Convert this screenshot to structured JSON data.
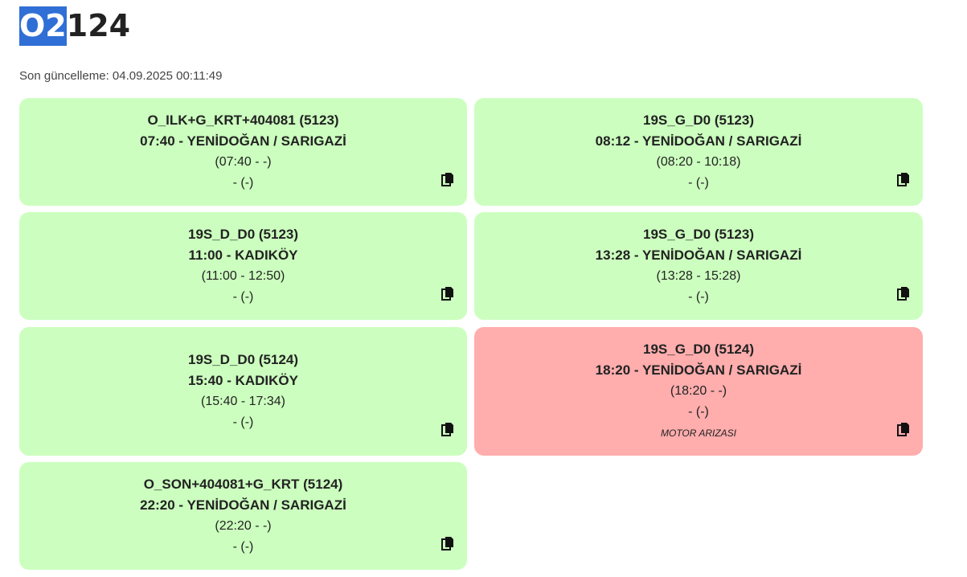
{
  "header": {
    "title_highlight": "O2",
    "title_rest": "124",
    "updated_label": "Son güncelleme: 04.09.2025 00:11:49"
  },
  "cards": [
    {
      "code": "O_ILK+G_KRT+404081 (5123)",
      "departure": "07:40 - YENİDOĞAN / SARIGAZİ",
      "time": "(07:40 - -)",
      "extra": "- (-)",
      "note": "",
      "status": "ok"
    },
    {
      "code": "19S_G_D0 (5123)",
      "departure": "08:12 - YENİDOĞAN / SARIGAZİ",
      "time": "(08:20 - 10:18)",
      "extra": "- (-)",
      "note": "",
      "status": "ok"
    },
    {
      "code": "19S_D_D0 (5123)",
      "departure": "11:00 - KADIKÖY",
      "time": "(11:00 - 12:50)",
      "extra": "- (-)",
      "note": "",
      "status": "ok"
    },
    {
      "code": "19S_G_D0 (5123)",
      "departure": "13:28 - YENİDOĞAN / SARIGAZİ",
      "time": "(13:28 - 15:28)",
      "extra": "- (-)",
      "note": "",
      "status": "ok"
    },
    {
      "code": "19S_D_D0 (5124)",
      "departure": "15:40 - KADIKÖY",
      "time": "(15:40 - 17:34)",
      "extra": "- (-)",
      "note": "",
      "status": "ok"
    },
    {
      "code": "19S_G_D0 (5124)",
      "departure": "18:20 - YENİDOĞAN / SARIGAZİ",
      "time": "(18:20 - -)",
      "extra": "- (-)",
      "note": "MOTOR ARIZASI",
      "status": "fault"
    },
    {
      "code": "O_SON+404081+G_KRT (5124)",
      "departure": "22:20 - YENİDOĞAN / SARIGAZİ",
      "time": "(22:20 - -)",
      "extra": "- (-)",
      "note": "",
      "status": "ok"
    }
  ],
  "colors": {
    "ok": "#ccffbf",
    "fault": "#ffadad",
    "title_highlight": "#2f6fd6"
  },
  "icons": {
    "copy": "copy-icon"
  }
}
